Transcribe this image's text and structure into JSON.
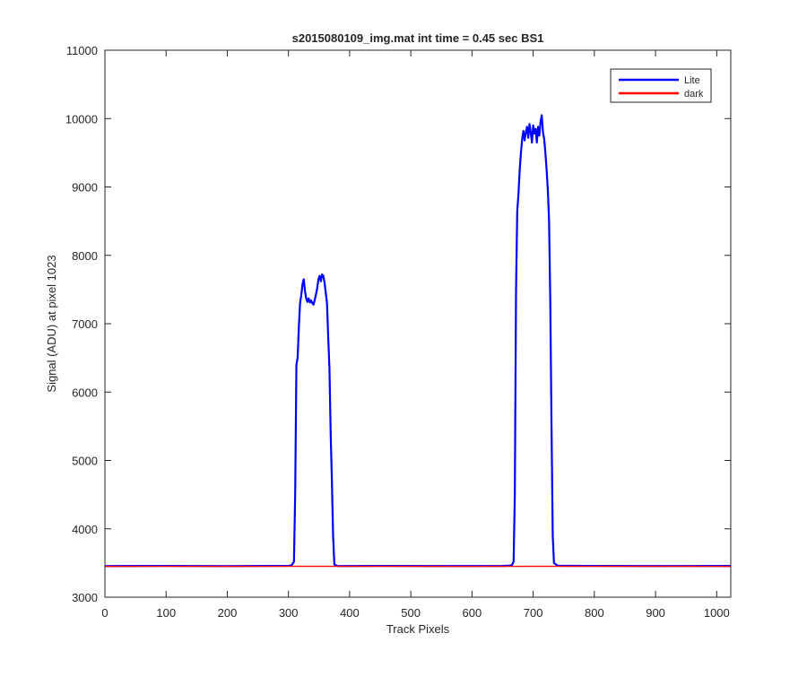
{
  "chart_data": {
    "type": "line",
    "title": "s2015080109_img.mat int time = 0.45 sec   BS1",
    "xlabel": "Track Pixels",
    "ylabel": "Signal (ADU) at pixel 1023",
    "xlim": [
      0,
      1023
    ],
    "ylim": [
      3000,
      11000
    ],
    "xticks": [
      0,
      100,
      200,
      300,
      400,
      500,
      600,
      700,
      800,
      900,
      1000
    ],
    "yticks": [
      3000,
      4000,
      5000,
      6000,
      7000,
      8000,
      9000,
      10000,
      11000
    ],
    "grid": false,
    "legend_position": "top-right",
    "series": [
      {
        "name": "Lite",
        "color": "#0000ff",
        "points": [
          [
            0,
            3455
          ],
          [
            100,
            3458
          ],
          [
            200,
            3455
          ],
          [
            300,
            3460
          ],
          [
            305,
            3465
          ],
          [
            309,
            3520
          ],
          [
            311,
            4500
          ],
          [
            313,
            6400
          ],
          [
            315,
            6500
          ],
          [
            317,
            6950
          ],
          [
            319,
            7300
          ],
          [
            321,
            7420
          ],
          [
            323,
            7580
          ],
          [
            325,
            7650
          ],
          [
            327,
            7480
          ],
          [
            329,
            7370
          ],
          [
            331,
            7320
          ],
          [
            333,
            7370
          ],
          [
            335,
            7310
          ],
          [
            337,
            7340
          ],
          [
            339,
            7300
          ],
          [
            341,
            7280
          ],
          [
            343,
            7350
          ],
          [
            345,
            7430
          ],
          [
            347,
            7520
          ],
          [
            349,
            7650
          ],
          [
            351,
            7700
          ],
          [
            353,
            7620
          ],
          [
            355,
            7720
          ],
          [
            357,
            7700
          ],
          [
            359,
            7600
          ],
          [
            361,
            7450
          ],
          [
            363,
            7300
          ],
          [
            365,
            6800
          ],
          [
            367,
            6350
          ],
          [
            369,
            5400
          ],
          [
            371,
            4700
          ],
          [
            373,
            3900
          ],
          [
            375,
            3480
          ],
          [
            380,
            3455
          ],
          [
            450,
            3458
          ],
          [
            550,
            3456
          ],
          [
            650,
            3457
          ],
          [
            665,
            3465
          ],
          [
            668,
            3520
          ],
          [
            670,
            4500
          ],
          [
            672,
            7500
          ],
          [
            674,
            8650
          ],
          [
            676,
            8900
          ],
          [
            678,
            9250
          ],
          [
            680,
            9500
          ],
          [
            682,
            9700
          ],
          [
            684,
            9820
          ],
          [
            686,
            9680
          ],
          [
            688,
            9800
          ],
          [
            690,
            9880
          ],
          [
            692,
            9720
          ],
          [
            694,
            9920
          ],
          [
            696,
            9800
          ],
          [
            698,
            9650
          ],
          [
            700,
            9900
          ],
          [
            702,
            9780
          ],
          [
            704,
            9850
          ],
          [
            706,
            9650
          ],
          [
            708,
            9880
          ],
          [
            710,
            9750
          ],
          [
            712,
            9950
          ],
          [
            714,
            10050
          ],
          [
            716,
            9800
          ],
          [
            718,
            9700
          ],
          [
            720,
            9500
          ],
          [
            722,
            9250
          ],
          [
            724,
            8950
          ],
          [
            726,
            8500
          ],
          [
            728,
            7300
          ],
          [
            730,
            5500
          ],
          [
            732,
            3900
          ],
          [
            734,
            3500
          ],
          [
            740,
            3460
          ],
          [
            800,
            3458
          ],
          [
            900,
            3456
          ],
          [
            1023,
            3457
          ]
        ]
      },
      {
        "name": "dark",
        "color": "#ff0000",
        "points": [
          [
            0,
            3450
          ],
          [
            100,
            3452
          ],
          [
            200,
            3450
          ],
          [
            300,
            3452
          ],
          [
            400,
            3451
          ],
          [
            500,
            3452
          ],
          [
            600,
            3450
          ],
          [
            700,
            3452
          ],
          [
            800,
            3451
          ],
          [
            900,
            3452
          ],
          [
            1023,
            3450
          ]
        ]
      }
    ]
  }
}
